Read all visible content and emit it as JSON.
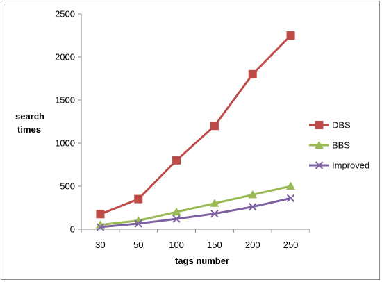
{
  "chart_data": {
    "type": "line",
    "categories": [
      "30",
      "50",
      "100",
      "150",
      "200",
      "250"
    ],
    "series": [
      {
        "name": "DBS",
        "values": [
          175,
          350,
          800,
          1200,
          1800,
          2250
        ],
        "color": "#be4b48",
        "marker": "square"
      },
      {
        "name": "BBS",
        "values": [
          50,
          100,
          200,
          300,
          400,
          500
        ],
        "color": "#98b954",
        "marker": "triangle"
      },
      {
        "name": "Improved",
        "values": [
          25,
          65,
          120,
          180,
          260,
          360
        ],
        "color": "#7d60a0",
        "marker": "x"
      }
    ],
    "xlabel": "tags number",
    "ylabel": [
      "search",
      "times"
    ],
    "ylim": [
      0,
      2500
    ],
    "yticks": [
      0,
      500,
      1000,
      1500,
      2000,
      2500
    ],
    "grid": false,
    "legend": "right"
  }
}
